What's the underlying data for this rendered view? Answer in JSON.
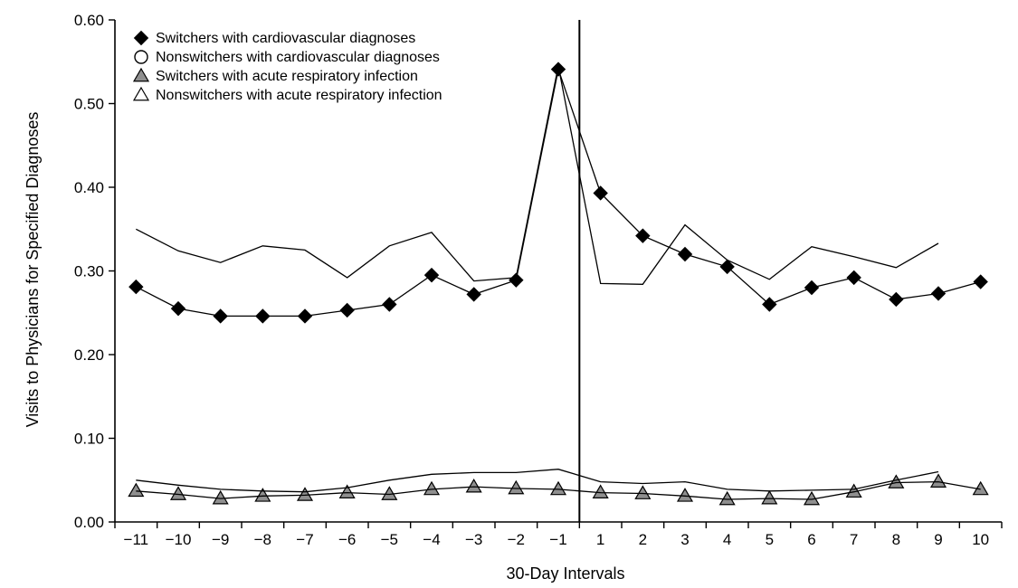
{
  "chart_data": {
    "type": "line",
    "xlabel": "30-Day Intervals",
    "ylabel": "Visits to Physicians for Specified Diagnoses",
    "categories": [
      "−11",
      "−10",
      "−9",
      "−8",
      "−7",
      "−6",
      "−5",
      "−4",
      "−3",
      "−2",
      "−1",
      "1",
      "2",
      "3",
      "4",
      "5",
      "6",
      "7",
      "8",
      "9",
      "10"
    ],
    "x": [
      -11,
      -10,
      -9,
      -8,
      -7,
      -6,
      -5,
      -4,
      -3,
      -2,
      -1,
      1,
      2,
      3,
      4,
      5,
      6,
      7,
      8,
      9,
      10
    ],
    "ylim": [
      0,
      0.6
    ],
    "yticks": [
      "0.00",
      "0.10",
      "0.20",
      "0.30",
      "0.40",
      "0.50",
      "0.60"
    ],
    "grid": false,
    "legend_position": "top-left",
    "reference_line": "between −1 and 1",
    "series": [
      {
        "name": "Switchers with cardiovascular diagnoses",
        "marker": "filled-diamond",
        "fill": "#000000",
        "values": [
          0.281,
          0.255,
          0.246,
          0.246,
          0.246,
          0.253,
          0.26,
          0.295,
          0.272,
          0.289,
          0.541,
          0.393,
          0.342,
          0.32,
          0.305,
          0.26,
          0.28,
          0.292,
          0.266,
          0.273,
          0.287
        ]
      },
      {
        "name": "Nonswitchers with cardiovascular diagnoses",
        "marker": "open-circle",
        "fill": "#ffffff",
        "values": [
          0.35,
          0.324,
          0.31,
          0.33,
          0.325,
          0.292,
          0.33,
          0.346,
          0.288,
          0.292,
          0.545,
          0.285,
          0.284,
          0.355,
          0.313,
          0.29,
          0.329,
          0.317,
          0.304,
          0.333,
          null
        ]
      },
      {
        "name": "Switchers with acute respiratory infection",
        "marker": "gray-triangle",
        "fill": "#8f8f8f",
        "values": [
          0.037,
          0.033,
          0.028,
          0.031,
          0.032,
          0.035,
          0.033,
          0.039,
          0.042,
          0.04,
          0.039,
          0.035,
          0.034,
          0.031,
          0.027,
          0.028,
          0.027,
          0.036,
          0.047,
          0.048,
          0.039
        ]
      },
      {
        "name": "Nonswitchers with acute respiratory infection",
        "marker": "open-triangle",
        "fill": "#ffffff",
        "values": [
          0.05,
          0.044,
          0.039,
          0.037,
          0.036,
          0.041,
          0.05,
          0.057,
          0.059,
          0.059,
          0.063,
          0.048,
          0.046,
          0.048,
          0.039,
          0.037,
          0.038,
          0.039,
          0.05,
          0.06,
          null
        ]
      }
    ]
  }
}
